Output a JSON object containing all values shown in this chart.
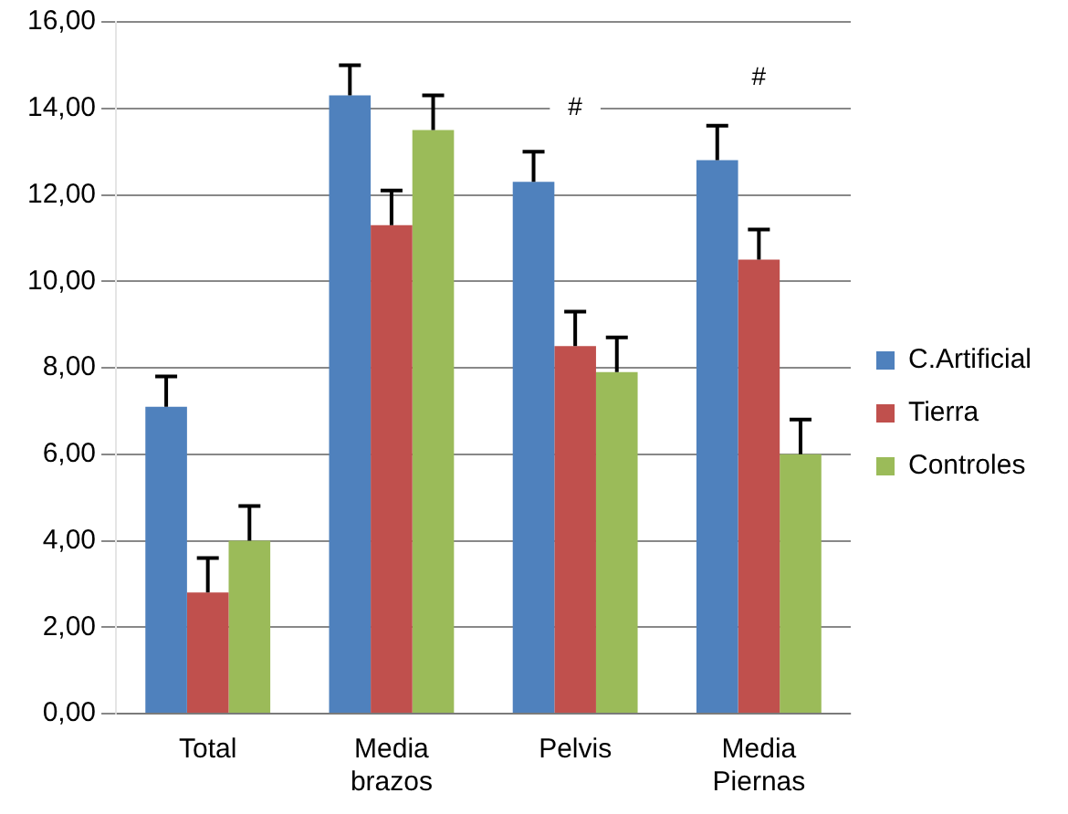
{
  "chart_data": {
    "type": "bar",
    "categories": [
      "Total",
      "Media brazos",
      "Pelvis",
      "Media Piernas"
    ],
    "series": [
      {
        "name": "C.Artificial",
        "color": "#4f81bd",
        "values": [
          7.1,
          14.3,
          12.3,
          12.8
        ],
        "errors": [
          [
            7.1,
            7.8
          ],
          [
            14.3,
            15.0
          ],
          [
            12.3,
            13.0
          ],
          [
            12.8,
            13.6
          ]
        ]
      },
      {
        "name": "Tierra",
        "color": "#c0504d",
        "values": [
          2.8,
          11.3,
          8.5,
          10.5
        ],
        "errors": [
          [
            2.8,
            3.6
          ],
          [
            11.3,
            12.1
          ],
          [
            8.5,
            9.3
          ],
          [
            10.5,
            11.2
          ]
        ]
      },
      {
        "name": "Controles",
        "color": "#9bbb59",
        "values": [
          4.0,
          13.5,
          7.9,
          6.0
        ],
        "errors": [
          [
            4.0,
            4.8
          ],
          [
            13.5,
            14.3
          ],
          [
            7.9,
            8.7
          ],
          [
            6.0,
            6.8
          ]
        ]
      }
    ],
    "ylim": [
      0,
      16
    ],
    "yticks": [
      {
        "value": 0,
        "label": "0,00"
      },
      {
        "value": 2,
        "label": "2,00"
      },
      {
        "value": 4,
        "label": "4,00"
      },
      {
        "value": 6,
        "label": "6,00"
      },
      {
        "value": 8,
        "label": "8,00"
      },
      {
        "value": 10,
        "label": "10,00"
      },
      {
        "value": 12,
        "label": "12,00"
      },
      {
        "value": 14,
        "label": "14,00"
      },
      {
        "value": 16,
        "label": "16,00"
      }
    ],
    "grid": "y",
    "legend": "right",
    "annotations": [
      {
        "text": "#",
        "x": "Pelvis",
        "y": 14.0
      },
      {
        "text": "#",
        "x": "Media Piernas",
        "y": 14.7
      }
    ]
  }
}
